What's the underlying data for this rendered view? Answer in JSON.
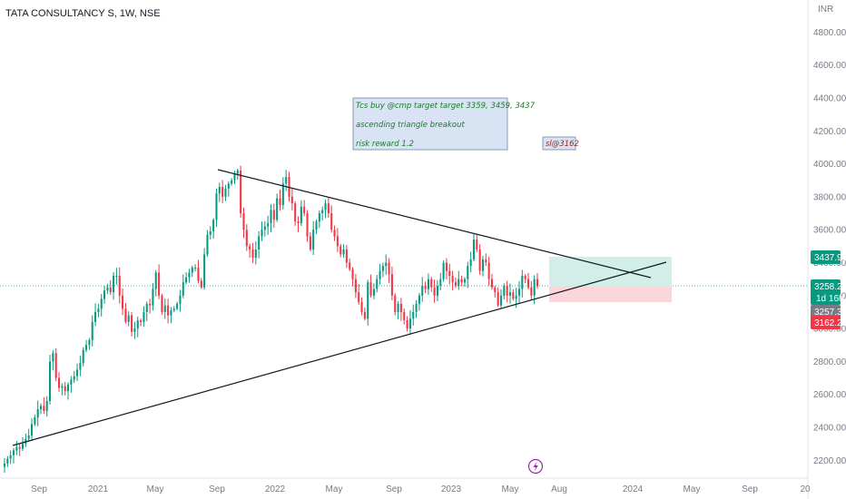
{
  "header": {
    "title": "TATA CONSULTANCY S, 1W, NSE"
  },
  "chart_data": {
    "type": "candlestick",
    "currency_label": "INR",
    "y_ticks": [
      2200,
      2400,
      2600,
      2800,
      3000,
      3200,
      3400,
      3600,
      3800,
      4000,
      4200,
      4400,
      4600,
      4800
    ],
    "y_tick_labels": [
      "2200.00",
      "2400.00",
      "2600.00",
      "2800.00",
      "3000.00",
      "3200.00",
      "3400.00",
      "3600.00",
      "3800.00",
      "4000.00",
      "4200.00",
      "4400.00",
      "4600.00",
      "4800.00"
    ],
    "ylim": [
      2095,
      4905
    ],
    "x_ticks": [
      {
        "label": "Sep",
        "date": "2020-09-01"
      },
      {
        "label": "2021",
        "date": "2021-01-01"
      },
      {
        "label": "May",
        "date": "2021-05-01"
      },
      {
        "label": "Sep",
        "date": "2021-09-01"
      },
      {
        "label": "2022",
        "date": "2022-01-01"
      },
      {
        "label": "May",
        "date": "2022-05-01"
      },
      {
        "label": "Sep",
        "date": "2022-09-01"
      },
      {
        "label": "2023",
        "date": "2023-01-01"
      },
      {
        "label": "May",
        "date": "2023-05-01"
      },
      {
        "label": "Aug",
        "date": "2023-08-01"
      },
      {
        "label": "2024",
        "date": "2024-01-01"
      },
      {
        "label": "May",
        "date": "2024-05-01"
      },
      {
        "label": "Sep",
        "date": "2024-09-01"
      },
      {
        "label": "20",
        "date": "2025-01-01"
      }
    ],
    "closes": [
      2180,
      2210,
      2230,
      2260,
      2280,
      2270,
      2300,
      2330,
      2350,
      2420,
      2460,
      2510,
      2530,
      2500,
      2560,
      2800,
      2850,
      2700,
      2640,
      2650,
      2620,
      2660,
      2690,
      2710,
      2750,
      2790,
      2870,
      2900,
      2930,
      3040,
      3100,
      3120,
      3180,
      3230,
      3250,
      3220,
      3320,
      3320,
      3200,
      3120,
      3040,
      3080,
      2980,
      3000,
      3050,
      3040,
      3100,
      3150,
      3140,
      3240,
      3340,
      3200,
      3100,
      3140,
      3080,
      3110,
      3120,
      3150,
      3200,
      3280,
      3310,
      3340,
      3370,
      3370,
      3290,
      3250,
      3450,
      3570,
      3590,
      3660,
      3820,
      3860,
      3800,
      3850,
      3880,
      3900,
      3940,
      3960,
      3700,
      3600,
      3500,
      3480,
      3430,
      3480,
      3560,
      3600,
      3620,
      3640,
      3720,
      3660,
      3790,
      3750,
      3880,
      3920,
      3800,
      3760,
      3650,
      3640,
      3740,
      3700,
      3560,
      3480,
      3600,
      3650,
      3700,
      3720,
      3760,
      3700,
      3600,
      3560,
      3500,
      3450,
      3480,
      3400,
      3360,
      3300,
      3220,
      3160,
      3100,
      3060,
      3280,
      3200,
      3240,
      3300,
      3350,
      3380,
      3400,
      3330,
      3200,
      3100,
      3150,
      3100,
      3050,
      3000,
      3060,
      3100,
      3150,
      3200,
      3260,
      3240,
      3300,
      3250,
      3200,
      3260,
      3300,
      3400,
      3350,
      3320,
      3280,
      3260,
      3300,
      3280,
      3300,
      3380,
      3420,
      3540,
      3480,
      3350,
      3420,
      3400,
      3300,
      3250,
      3220,
      3140,
      3200,
      3260,
      3200,
      3220,
      3180,
      3200,
      3240,
      3320,
      3300,
      3250,
      3200,
      3300,
      3258
    ]
  },
  "annotations": {
    "note_line1": "Tcs buy @cmp target target 3359, 3459, 3437",
    "note_line2": "ascending triangle breakout",
    "note_line3": "risk reward 1.2",
    "stop_loss": "sl@3162"
  },
  "price_tags": {
    "target": "3437.90",
    "current": "3258.20",
    "countdown": "1d 16h",
    "last": "3257.30",
    "stop": "3162.25"
  },
  "event_icon": "lightning-icon",
  "colors": {
    "up": "#089981",
    "down": "#f23645",
    "target_zone": "#d1efe8",
    "stop_zone": "#fbd6da",
    "note_bg": "#d8e3f3",
    "note_border": "#6e86a8",
    "text_green": "#1b7a2a",
    "text_red": "#8e2a2a"
  }
}
